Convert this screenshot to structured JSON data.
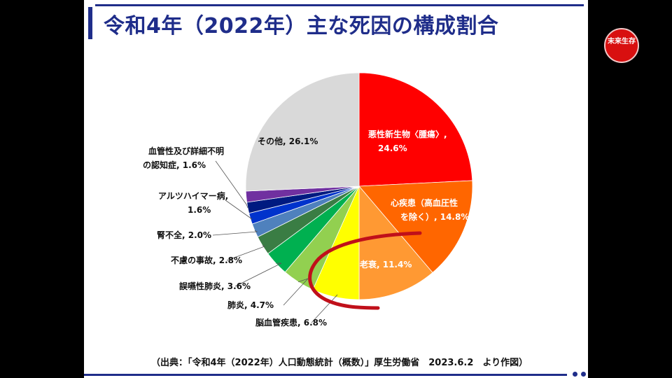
{
  "title": "令和4年（2022年）主な死因の構成割合",
  "source": "（出典：「令和4年（2022年）人口動態統計（概数）」厚生労働省　2023.6.2　より作図）",
  "logo_text": "末来生存",
  "chart_data": {
    "type": "pie",
    "title": "令和4年（2022年）主な死因の構成割合",
    "slices": [
      {
        "label": "悪性新生物〈腫瘍〉,",
        "value_label": "24.6%",
        "value": 24.6,
        "color": "#ff0000",
        "text_color": "#ffffff"
      },
      {
        "label": "心疾患（高血圧性 を除く）,",
        "value_label": "14.8%",
        "value": 14.8,
        "color": "#ff6600",
        "text_color": "#ffffff"
      },
      {
        "label": "老衰,",
        "value_label": "11.4%",
        "value": 11.4,
        "color": "#ff9933",
        "text_color": "#ffffff"
      },
      {
        "label": "脳血管疾患,",
        "value_label": "6.8%",
        "value": 6.8,
        "color": "#ffff00",
        "text_color": "#111111"
      },
      {
        "label": "肺炎,",
        "value_label": "4.7%",
        "value": 4.7,
        "color": "#92d050",
        "text_color": "#111111"
      },
      {
        "label": "誤嚥性肺炎,",
        "value_label": "3.6%",
        "value": 3.6,
        "color": "#00b050",
        "text_color": "#111111"
      },
      {
        "label": "不慮の事故,",
        "value_label": "2.8%",
        "value": 2.8,
        "color": "#3a7d44",
        "text_color": "#111111"
      },
      {
        "label": "腎不全,",
        "value_label": "2.0%",
        "value": 2.0,
        "color": "#4f81bd",
        "text_color": "#111111"
      },
      {
        "label": "アルツハイマー病,",
        "value_label": "1.6%",
        "value": 1.6,
        "color": "#0033cc",
        "text_color": "#111111"
      },
      {
        "label": "血管性及び詳細不明 の認知症,",
        "value_label": "1.6%",
        "value": 1.6,
        "color": "#001a80",
        "text_color": "#111111"
      },
      {
        "label": "(unlabeled)",
        "value_label": "",
        "value": 1.6,
        "color": "#7030a0",
        "text_color": "#111111"
      },
      {
        "label": "その他,",
        "value_label": "26.1%",
        "value": 26.1,
        "color": "#d9d9d9",
        "text_color": "#111111"
      }
    ]
  }
}
